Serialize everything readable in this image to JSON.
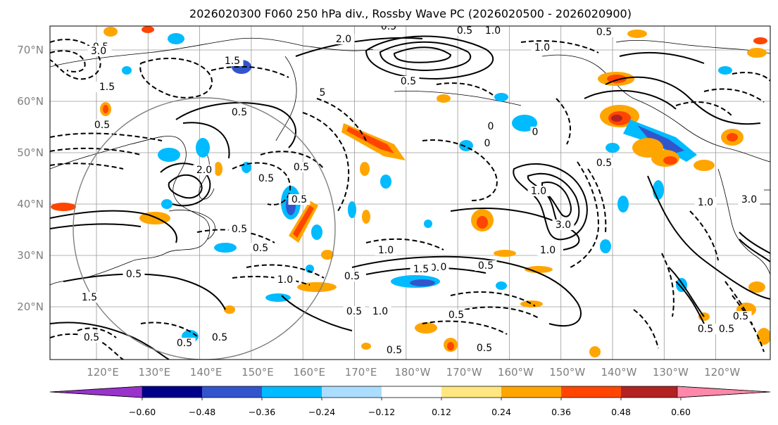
{
  "title": "2026020300 F060 250 hPa div., Rossby Wave PC (2026020500 - 2026020900)",
  "lat_labels": [
    "70°N",
    "60°N",
    "50°N",
    "40°N",
    "30°N",
    "20°N"
  ],
  "lon_labels": [
    "120°E",
    "130°E",
    "140°E",
    "150°E",
    "160°E",
    "170°E",
    "180°W",
    "170°W",
    "160°W",
    "150°W",
    "140°W",
    "130°W",
    "120°W"
  ],
  "colorbar": {
    "colors": [
      "#9933cc",
      "#000088",
      "#3355cc",
      "#00bbff",
      "#aaddff",
      "#ffffff",
      "#ffe680",
      "#ffa500",
      "#ff4500",
      "#b22222",
      "#ff88aa"
    ],
    "tick_labels": [
      "−0.60",
      "−0.48",
      "−0.36",
      "−0.24",
      "−0.12",
      "0.12",
      "0.24",
      "0.36",
      "0.48",
      "0.60"
    ]
  },
  "contour_labels": [
    "0.5",
    "3.0",
    "0.5",
    "1.0",
    "0.5",
    "2.0",
    "1.0",
    "0.5",
    "1.5",
    "0.5",
    "5",
    "1.5",
    "0",
    "0.5",
    "0.5",
    "0.5",
    "0.5",
    "0",
    "0.5",
    "0.5",
    "2.0",
    "0.5",
    "0.5",
    "1.0",
    "0.5",
    "0.5",
    "1.0",
    "0.5",
    "3.0",
    "1.0",
    "0.5",
    "1.0",
    "1.5",
    "0",
    "0",
    "1.0",
    "0.5",
    "0.5",
    "0.5",
    "0.5",
    "0.5",
    "0.5",
    "1.5",
    "0.5",
    "3.0",
    "1.0",
    "1.0",
    "0.5",
    "0.5",
    "0.5"
  ]
}
